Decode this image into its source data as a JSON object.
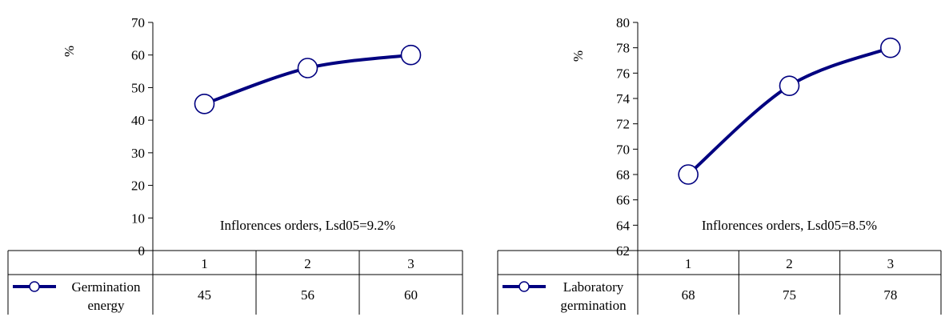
{
  "chart_data": [
    {
      "type": "line",
      "ylabel": "%",
      "ylim": [
        0,
        70
      ],
      "yticks": [
        0,
        10,
        20,
        30,
        40,
        50,
        60,
        70
      ],
      "categories": [
        "1",
        "2",
        "3"
      ],
      "annotation": "Inflorences orders, Lsd05=9.2%",
      "series": [
        {
          "name_lines": [
            "Germination",
            "energy"
          ],
          "values": [
            45,
            56,
            60
          ],
          "color": "#000080"
        }
      ],
      "table_values": [
        "45",
        "56",
        "60"
      ],
      "grid": false,
      "legend": "data-table-left"
    },
    {
      "type": "line",
      "ylabel": "%",
      "ylim": [
        62,
        80
      ],
      "yticks": [
        62,
        64,
        66,
        68,
        70,
        72,
        74,
        76,
        78,
        80
      ],
      "categories": [
        "1",
        "2",
        "3"
      ],
      "annotation": "Inflorences orders, Lsd05=8.5%",
      "series": [
        {
          "name_lines": [
            "Laboratory",
            "germination"
          ],
          "values": [
            68,
            75,
            78
          ],
          "color": "#000080"
        }
      ],
      "table_values": [
        "68",
        "75",
        "78"
      ],
      "grid": false,
      "legend": "data-table-left"
    }
  ]
}
